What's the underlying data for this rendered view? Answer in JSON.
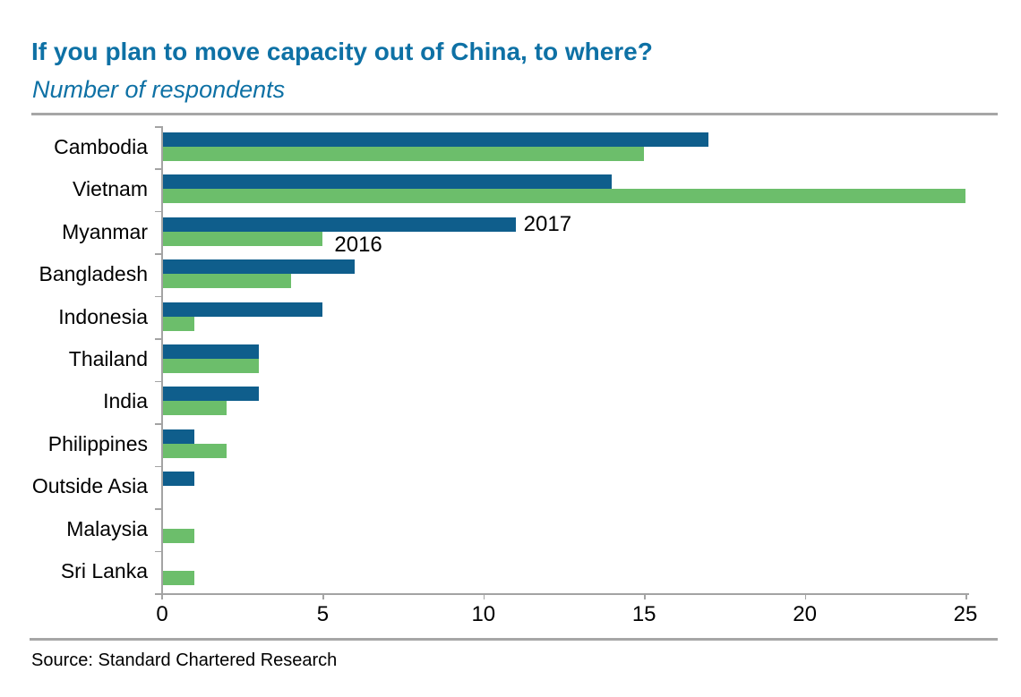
{
  "header": {
    "title": "If you plan to move capacity out of China, to where?",
    "subtitle": "Number of respondents"
  },
  "footer": {
    "source": "Source: Standard Chartered Research"
  },
  "chart_data": {
    "type": "bar",
    "orientation": "horizontal",
    "title": "If you plan to move capacity out of China, to where?",
    "subtitle": "Number of respondents",
    "categories": [
      "Cambodia",
      "Vietnam",
      "Myanmar",
      "Bangladesh",
      "Indonesia",
      "Thailand",
      "India",
      "Philippines",
      "Outside Asia",
      "Malaysia",
      "Sri Lanka"
    ],
    "series": [
      {
        "name": "2017",
        "color": "#0F5E8C",
        "values": [
          17,
          14,
          11,
          6,
          5,
          3,
          3,
          1,
          1,
          0,
          0
        ]
      },
      {
        "name": "2016",
        "color": "#6CBE6B",
        "values": [
          15,
          25,
          5,
          4,
          1,
          3,
          2,
          2,
          0,
          1,
          1
        ]
      }
    ],
    "xlim": [
      0,
      25
    ],
    "xticks": [
      0,
      5,
      10,
      15,
      20,
      25
    ],
    "grid": false,
    "legend_position": "inline labels next to Myanmar row bars",
    "annotations": [
      {
        "text": "2017",
        "attached_to": "Myanmar 2017 bar end"
      },
      {
        "text": "2016",
        "attached_to": "Myanmar 2016 bar end"
      }
    ]
  },
  "colors": {
    "title_blue": "#0E71A5",
    "bar_2017_blue": "#0F5E8C",
    "bar_2016_green": "#6CBE6B",
    "axis_gray": "#A3A3A3",
    "rule_gray": "#A6A6A6",
    "text_black": "#000000"
  }
}
